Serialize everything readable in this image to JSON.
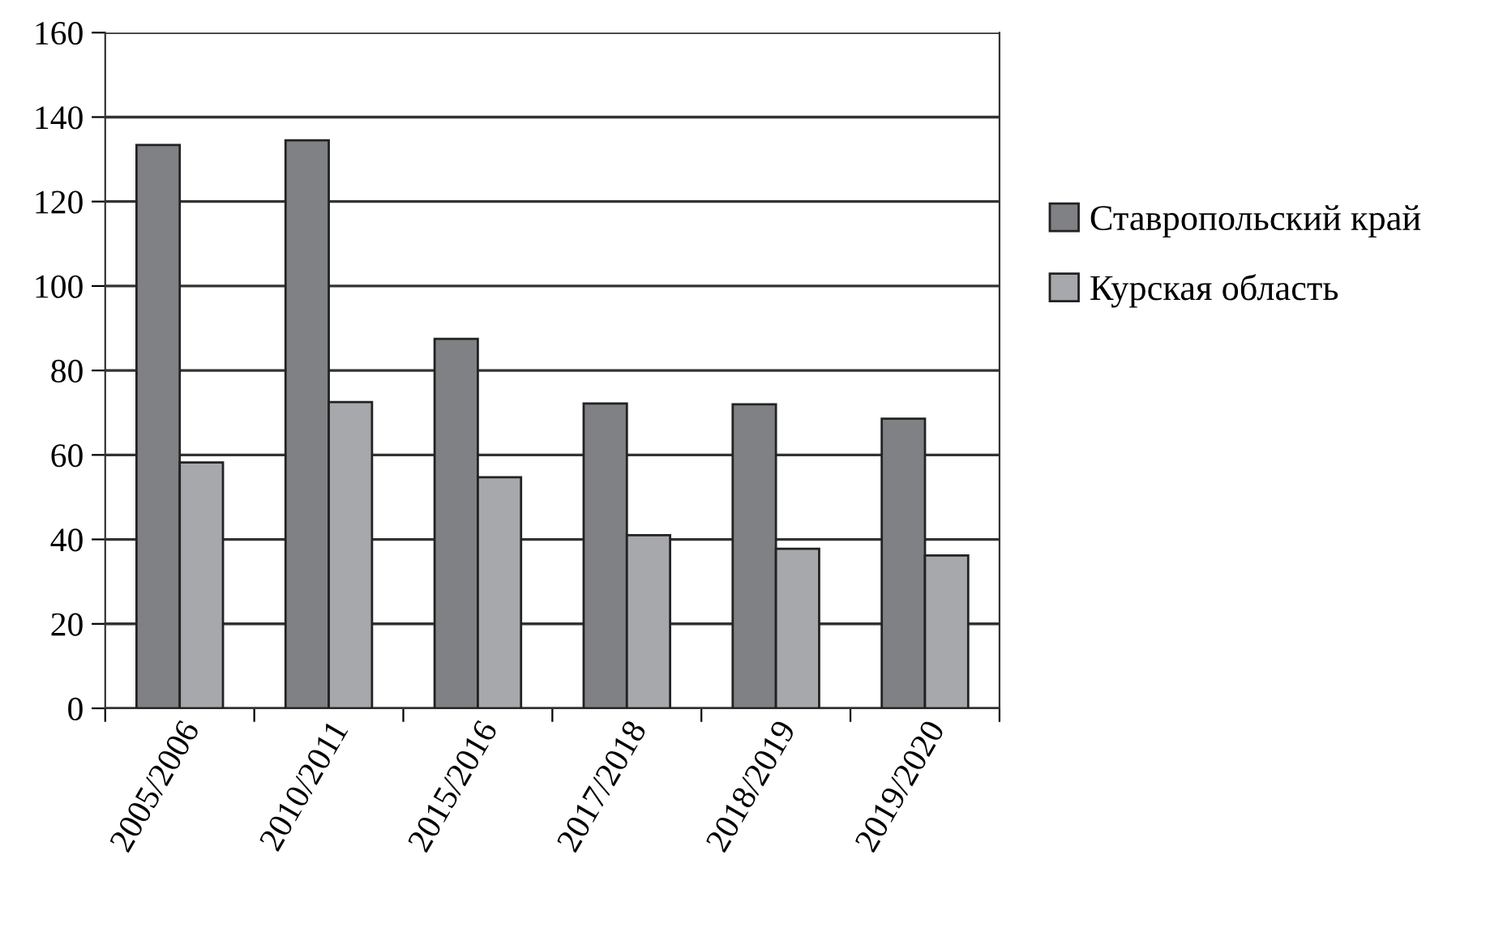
{
  "chart_data": {
    "type": "bar",
    "categories": [
      "2005/2006",
      "2010/2011",
      "2015/2016",
      "2017/2018",
      "2018/2019",
      "2019/2020"
    ],
    "series": [
      {
        "name": "Ставропольский край",
        "color": "#808184",
        "values": [
          133.4,
          134.5,
          87.5,
          72.2,
          72,
          68.6
        ]
      },
      {
        "name": "Курская область",
        "color": "#a7a8ab",
        "values": [
          58.2,
          72.5,
          54.7,
          41,
          37.8,
          36.2
        ]
      }
    ],
    "ylim": [
      0,
      160
    ],
    "yticks": [
      0,
      20,
      40,
      60,
      80,
      100,
      120,
      140,
      160
    ],
    "grid": "y",
    "legend": "right"
  }
}
